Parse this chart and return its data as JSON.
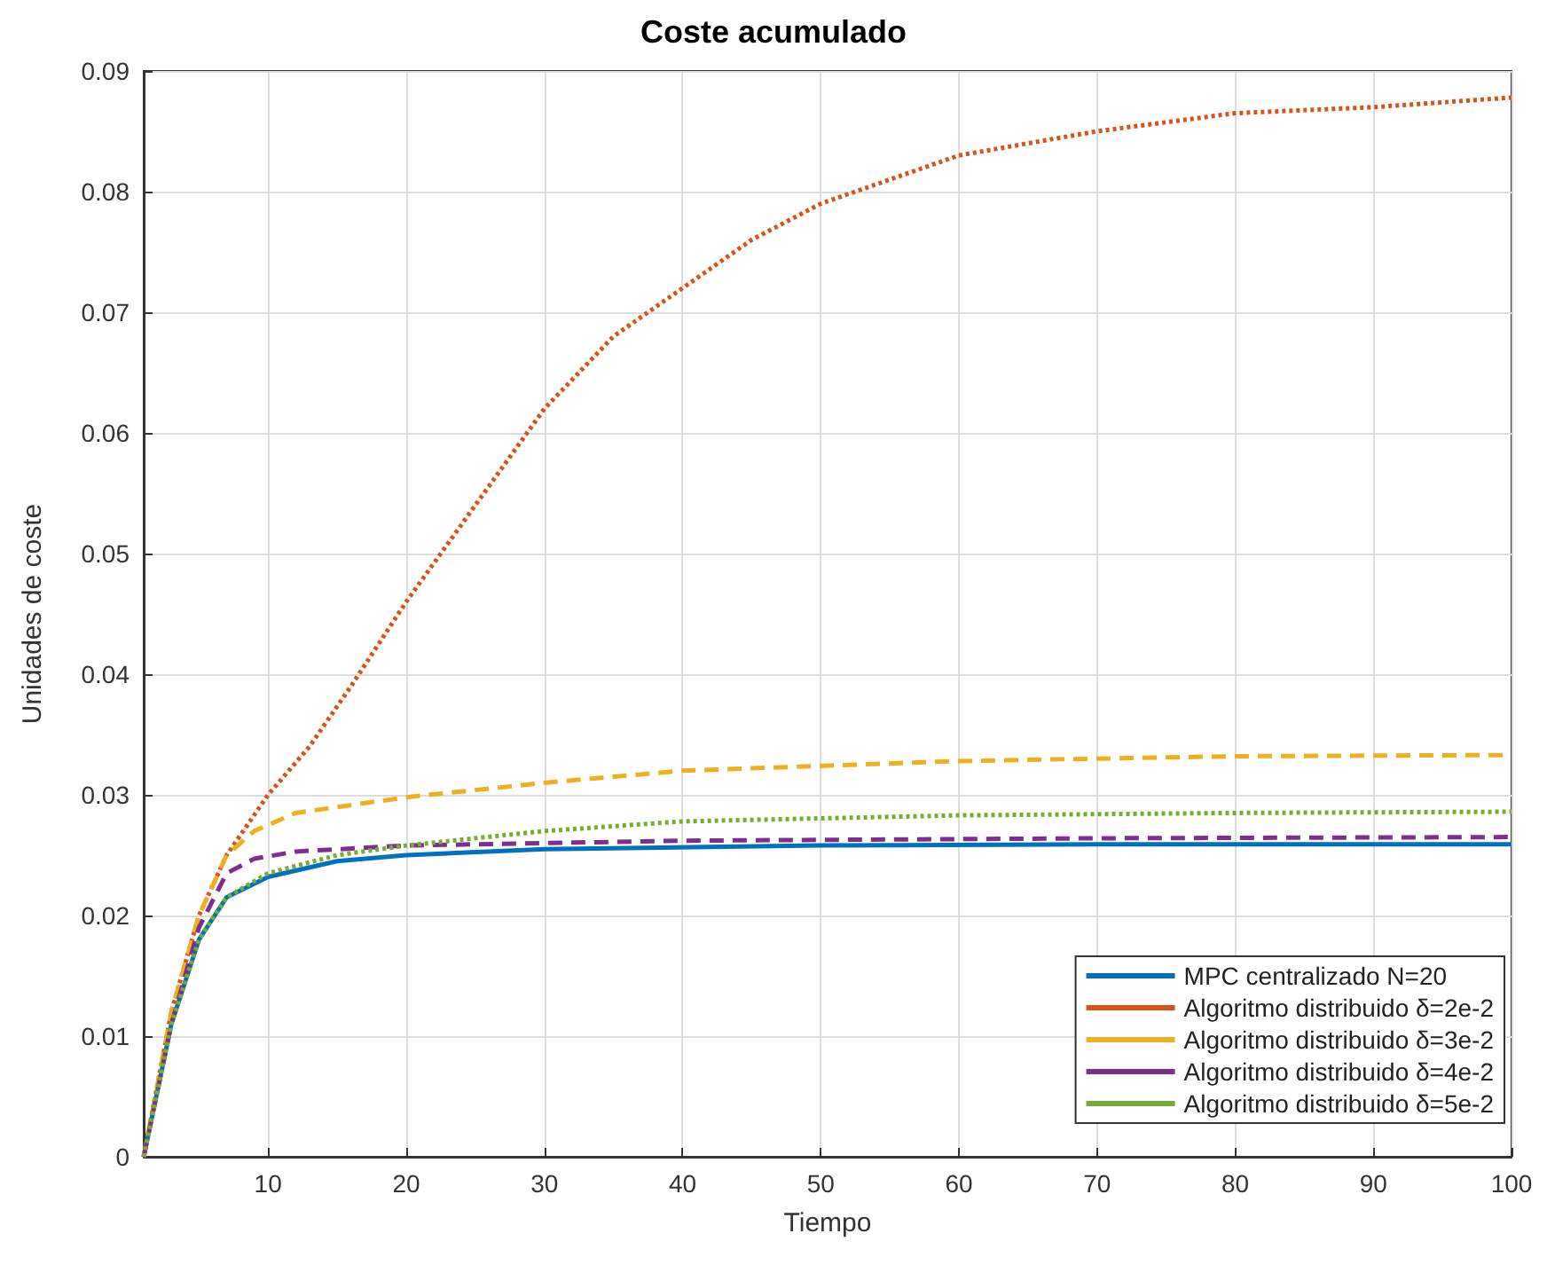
{
  "chart_data": {
    "type": "line",
    "title": "Coste acumulado",
    "xlabel": "Tiempo",
    "ylabel": "Unidades de coste",
    "xlim": [
      1,
      100
    ],
    "xticks": [
      10,
      20,
      30,
      40,
      50,
      60,
      70,
      80,
      90,
      100
    ],
    "ylim": [
      0,
      0.09
    ],
    "yticks": [
      0,
      0.01,
      0.02,
      0.03,
      0.04,
      0.05,
      0.06,
      0.07,
      0.08,
      0.09
    ],
    "grid": true,
    "legend": "bottom right",
    "marker": "none",
    "series": [
      {
        "name": "MPC centralizado N=20",
        "color": "#0072bd",
        "line_style": "solid",
        "x": [
          1,
          3,
          5,
          7,
          10,
          15,
          20,
          30,
          50,
          70,
          100
        ],
        "values": [
          0,
          0.011,
          0.018,
          0.0215,
          0.0232,
          0.0245,
          0.025,
          0.0255,
          0.0258,
          0.0259,
          0.0259
        ]
      },
      {
        "name": "Algoritmo distribuido δ=2e-2",
        "color": "#d95319",
        "line_style": "dotted",
        "x": [
          1,
          3,
          5,
          7,
          10,
          13,
          16,
          20,
          25,
          30,
          35,
          40,
          45,
          50,
          60,
          70,
          80,
          90,
          100
        ],
        "values": [
          0,
          0.012,
          0.02,
          0.025,
          0.03,
          0.034,
          0.039,
          0.046,
          0.054,
          0.062,
          0.068,
          0.072,
          0.076,
          0.079,
          0.083,
          0.085,
          0.0865,
          0.087,
          0.0878
        ]
      },
      {
        "name": "Algoritmo distribuido δ=3e-2",
        "color": "#edb120",
        "line_style": "dashed",
        "x": [
          1,
          3,
          5,
          7,
          9,
          12,
          20,
          30,
          40,
          60,
          80,
          100
        ],
        "values": [
          0,
          0.012,
          0.02,
          0.025,
          0.027,
          0.0285,
          0.0298,
          0.031,
          0.032,
          0.0328,
          0.0332,
          0.0333
        ]
      },
      {
        "name": "Algoritmo distribuido δ=4e-2",
        "color": "#7e2f8e",
        "line_style": "dashed",
        "x": [
          1,
          3,
          5,
          7,
          9,
          12,
          20,
          40,
          70,
          100
        ],
        "values": [
          0,
          0.011,
          0.019,
          0.0235,
          0.0247,
          0.0253,
          0.0258,
          0.0262,
          0.0264,
          0.0265
        ]
      },
      {
        "name": "Algoritmo distribuido δ=5e-2",
        "color": "#77ac30",
        "line_style": "dotted",
        "x": [
          1,
          3,
          5,
          7,
          10,
          15,
          20,
          30,
          40,
          60,
          80,
          100
        ],
        "values": [
          0,
          0.011,
          0.018,
          0.0215,
          0.0235,
          0.025,
          0.0258,
          0.027,
          0.0278,
          0.0283,
          0.0285,
          0.0286
        ]
      }
    ]
  }
}
